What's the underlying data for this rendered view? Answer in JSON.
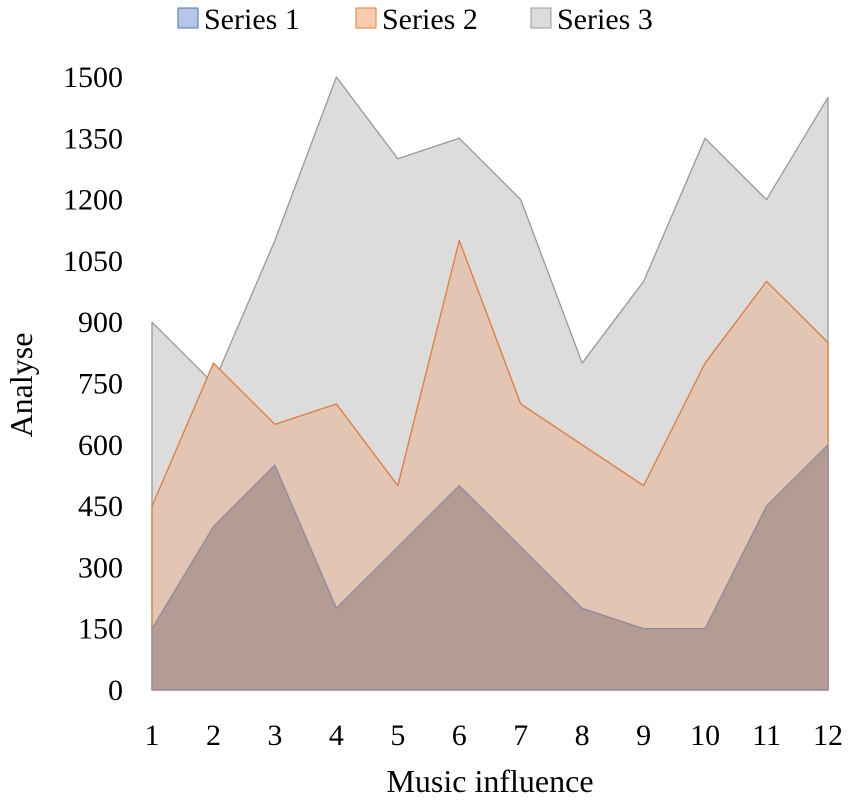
{
  "chart_data": {
    "type": "area",
    "x": [
      1,
      2,
      3,
      4,
      5,
      6,
      7,
      8,
      9,
      10,
      11,
      12
    ],
    "series": [
      {
        "name": "Series 1",
        "values": [
          150,
          400,
          550,
          200,
          350,
          500,
          350,
          200,
          150,
          150,
          450,
          600
        ],
        "color": "#b49b94",
        "stroke": "#8e8aa3",
        "legend_color": "#b4c7e7",
        "legend_stroke": "#4472c4"
      },
      {
        "name": "Series 2",
        "values": [
          450,
          800,
          650,
          700,
          500,
          1100,
          700,
          600,
          500,
          800,
          1000,
          850
        ],
        "color": "#e2c5b2",
        "stroke": "#e07b3c",
        "legend_color": "#f8cbad",
        "legend_stroke": "#ed7d31"
      },
      {
        "name": "Series 3",
        "values": [
          900,
          750,
          1100,
          1500,
          1300,
          1350,
          1200,
          800,
          1000,
          1350,
          1200,
          1450
        ],
        "color": "#dcdcdc",
        "stroke": "#999999",
        "legend_color": "#dcdcdc",
        "legend_stroke": "#9a9a9a"
      }
    ],
    "xlabel": "Music influence",
    "ylabel": "Analyse",
    "ylim": [
      0,
      1500
    ],
    "yticks": [
      "0",
      "150",
      "300",
      "450",
      "600",
      "750",
      "900",
      "1050",
      "1200",
      "1350",
      "1500"
    ],
    "xticks": [
      "1",
      "2",
      "3",
      "4",
      "5",
      "6",
      "7",
      "8",
      "9",
      "10",
      "11",
      "12"
    ],
    "grid": false,
    "legend_position": "top"
  }
}
